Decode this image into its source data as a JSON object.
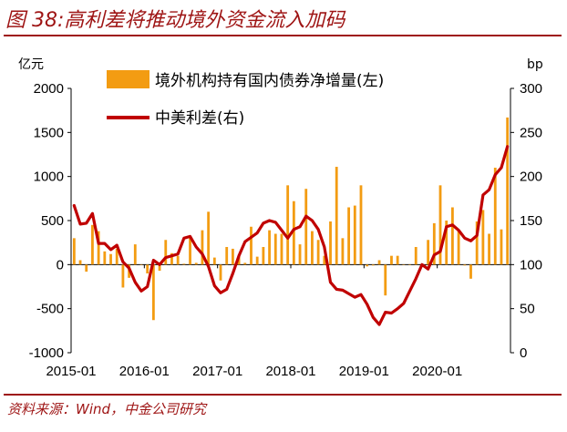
{
  "title": "图 38:高利差将推动境外资金流入加码",
  "source": "资料来源：Wind，中金公司研究",
  "chart_data": {
    "type": "bar+line",
    "left_axis": {
      "unit": "亿元",
      "ylim": [
        -1000,
        2000
      ],
      "ticks": [
        2000,
        1500,
        1000,
        500,
        0,
        -500,
        -1000
      ]
    },
    "right_axis": {
      "unit": "bp",
      "ylim": [
        0,
        300
      ],
      "ticks": [
        300,
        250,
        200,
        150,
        100,
        50,
        0
      ]
    },
    "x_ticks": [
      "2015-01",
      "2016-01",
      "2017-01",
      "2018-01",
      "2019-01",
      "2020-01"
    ],
    "legend_position": "top",
    "series": [
      {
        "name": "境外机构持有国内债券净增量(左)",
        "type": "bar",
        "axis": "left",
        "color": "#f39c12",
        "x": [
          "2015-01",
          "2015-02",
          "2015-03",
          "2015-04",
          "2015-05",
          "2015-06",
          "2015-07",
          "2015-08",
          "2015-09",
          "2015-10",
          "2015-11",
          "2015-12",
          "2016-01",
          "2016-02",
          "2016-03",
          "2016-04",
          "2016-05",
          "2016-06",
          "2016-07",
          "2016-08",
          "2016-09",
          "2016-10",
          "2016-11",
          "2016-12",
          "2017-01",
          "2017-02",
          "2017-03",
          "2017-04",
          "2017-05",
          "2017-06",
          "2017-07",
          "2017-08",
          "2017-09",
          "2017-10",
          "2017-11",
          "2017-12",
          "2018-01",
          "2018-02",
          "2018-03",
          "2018-04",
          "2018-05",
          "2018-06",
          "2018-07",
          "2018-08",
          "2018-09",
          "2018-10",
          "2018-11",
          "2018-12",
          "2019-01",
          "2019-02",
          "2019-03",
          "2019-04",
          "2019-05",
          "2019-06",
          "2019-07",
          "2019-08",
          "2019-09",
          "2019-10",
          "2019-11",
          "2019-12",
          "2020-01",
          "2020-02",
          "2020-03",
          "2020-04",
          "2020-05",
          "2020-06",
          "2020-07",
          "2020-08",
          "2020-09",
          "2020-10",
          "2020-11",
          "2020-12"
        ],
        "values": [
          300,
          50,
          -80,
          450,
          380,
          150,
          120,
          180,
          -260,
          -150,
          230,
          0,
          -100,
          -630,
          -70,
          280,
          130,
          100,
          10,
          320,
          20,
          390,
          600,
          80,
          -180,
          200,
          180,
          110,
          20,
          430,
          90,
          200,
          390,
          350,
          350,
          900,
          720,
          230,
          860,
          380,
          280,
          100,
          490,
          1110,
          300,
          650,
          670,
          900,
          -20,
          -10,
          50,
          -350,
          100,
          100,
          0,
          0,
          200,
          10,
          280,
          470,
          900,
          500,
          650,
          390,
          -10,
          -160,
          490,
          620,
          350,
          1100,
          400,
          1670
        ]
      },
      {
        "name": "中美利差(右)",
        "type": "line",
        "axis": "right",
        "color": "#c00000",
        "x": [
          "2015-01",
          "2015-02",
          "2015-03",
          "2015-04",
          "2015-05",
          "2015-06",
          "2015-07",
          "2015-08",
          "2015-09",
          "2015-10",
          "2015-11",
          "2015-12",
          "2016-01",
          "2016-02",
          "2016-03",
          "2016-04",
          "2016-05",
          "2016-06",
          "2016-07",
          "2016-08",
          "2016-09",
          "2016-10",
          "2016-11",
          "2016-12",
          "2017-01",
          "2017-02",
          "2017-03",
          "2017-04",
          "2017-05",
          "2017-06",
          "2017-07",
          "2017-08",
          "2017-09",
          "2017-10",
          "2017-11",
          "2017-12",
          "2018-01",
          "2018-02",
          "2018-03",
          "2018-04",
          "2018-05",
          "2018-06",
          "2018-07",
          "2018-08",
          "2018-09",
          "2018-10",
          "2018-11",
          "2018-12",
          "2019-01",
          "2019-02",
          "2019-03",
          "2019-04",
          "2019-05",
          "2019-06",
          "2019-07",
          "2019-08",
          "2019-09",
          "2019-10",
          "2019-11",
          "2019-12",
          "2020-01",
          "2020-02",
          "2020-03",
          "2020-04",
          "2020-05",
          "2020-06",
          "2020-07",
          "2020-08",
          "2020-09",
          "2020-10",
          "2020-11",
          "2020-12"
        ],
        "values": [
          167,
          146,
          147,
          158,
          124,
          124,
          117,
          122,
          103,
          96,
          80,
          70,
          75,
          105,
          100,
          108,
          110,
          112,
          130,
          132,
          120,
          112,
          98,
          76,
          68,
          72,
          90,
          110,
          126,
          131,
          136,
          147,
          150,
          148,
          139,
          130,
          140,
          143,
          155,
          150,
          140,
          120,
          80,
          72,
          71,
          67,
          63,
          66,
          55,
          40,
          32,
          46,
          45,
          50,
          56,
          70,
          84,
          100,
          95,
          111,
          115,
          143,
          145,
          139,
          130,
          127,
          133,
          179,
          185,
          202,
          210,
          234
        ]
      }
    ]
  }
}
